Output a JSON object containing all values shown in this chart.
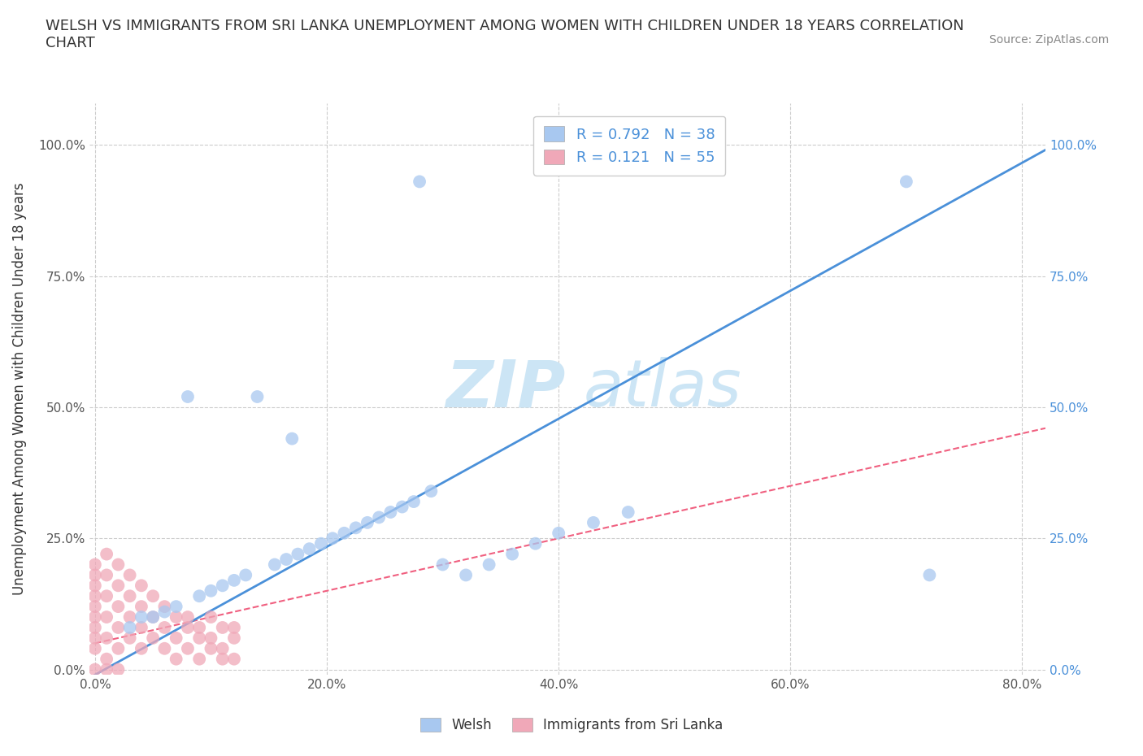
{
  "title": "WELSH VS IMMIGRANTS FROM SRI LANKA UNEMPLOYMENT AMONG WOMEN WITH CHILDREN UNDER 18 YEARS CORRELATION\nCHART",
  "source": "Source: ZipAtlas.com",
  "ylabel": "Unemployment Among Women with Children Under 18 years",
  "welsh_R": 0.792,
  "welsh_N": 38,
  "srilanka_R": 0.121,
  "srilanka_N": 55,
  "welsh_color": "#a8c8f0",
  "srilanka_color": "#f0a8b8",
  "welsh_line_color": "#4a90d9",
  "srilanka_line_color": "#f06080",
  "background_color": "#ffffff",
  "xlim": [
    -0.005,
    0.82
  ],
  "ylim": [
    -0.01,
    1.08
  ],
  "xticks": [
    0.0,
    0.2,
    0.4,
    0.6,
    0.8
  ],
  "xtick_labels": [
    "0.0%",
    "20.0%",
    "40.0%",
    "60.0%",
    "80.0%"
  ],
  "yticks": [
    0.0,
    0.25,
    0.5,
    0.75,
    1.0
  ],
  "ytick_labels": [
    "0.0%",
    "25.0%",
    "50.0%",
    "75.0%",
    "100.0%"
  ],
  "welsh_x": [
    0.28,
    0.08,
    0.14,
    0.17,
    0.05,
    0.06,
    0.07,
    0.09,
    0.1,
    0.11,
    0.12,
    0.13,
    0.155,
    0.165,
    0.175,
    0.185,
    0.195,
    0.205,
    0.215,
    0.225,
    0.235,
    0.245,
    0.255,
    0.265,
    0.275,
    0.29,
    0.3,
    0.32,
    0.34,
    0.36,
    0.38,
    0.4,
    0.43,
    0.46,
    0.7,
    0.72,
    0.03,
    0.04
  ],
  "welsh_y": [
    0.93,
    0.52,
    0.52,
    0.44,
    0.1,
    0.11,
    0.12,
    0.14,
    0.15,
    0.16,
    0.17,
    0.18,
    0.2,
    0.21,
    0.22,
    0.23,
    0.24,
    0.25,
    0.26,
    0.27,
    0.28,
    0.29,
    0.3,
    0.31,
    0.32,
    0.34,
    0.2,
    0.18,
    0.2,
    0.22,
    0.24,
    0.26,
    0.28,
    0.3,
    0.93,
    0.18,
    0.08,
    0.1
  ],
  "srilanka_x": [
    0.0,
    0.0,
    0.0,
    0.0,
    0.0,
    0.0,
    0.0,
    0.0,
    0.01,
    0.01,
    0.01,
    0.01,
    0.01,
    0.01,
    0.02,
    0.02,
    0.02,
    0.02,
    0.02,
    0.03,
    0.03,
    0.03,
    0.03,
    0.04,
    0.04,
    0.04,
    0.04,
    0.05,
    0.05,
    0.05,
    0.06,
    0.06,
    0.06,
    0.07,
    0.07,
    0.07,
    0.08,
    0.08,
    0.08,
    0.09,
    0.09,
    0.09,
    0.1,
    0.1,
    0.1,
    0.11,
    0.11,
    0.11,
    0.12,
    0.12,
    0.12,
    0.0,
    0.0,
    0.01,
    0.02
  ],
  "srilanka_y": [
    0.2,
    0.18,
    0.16,
    0.14,
    0.12,
    0.1,
    0.08,
    0.06,
    0.22,
    0.18,
    0.14,
    0.1,
    0.06,
    0.02,
    0.2,
    0.16,
    0.12,
    0.08,
    0.04,
    0.18,
    0.14,
    0.1,
    0.06,
    0.16,
    0.12,
    0.08,
    0.04,
    0.14,
    0.1,
    0.06,
    0.12,
    0.08,
    0.04,
    0.1,
    0.06,
    0.02,
    0.08,
    0.04,
    0.1,
    0.06,
    0.02,
    0.08,
    0.04,
    0.1,
    0.06,
    0.02,
    0.08,
    0.04,
    0.06,
    0.02,
    0.08,
    0.04,
    0.0,
    0.0,
    0.0
  ]
}
